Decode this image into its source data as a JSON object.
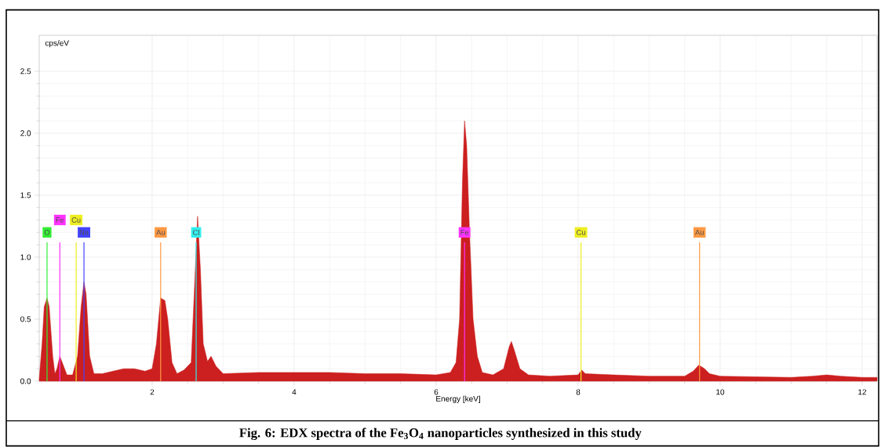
{
  "chart_data": {
    "type": "area",
    "title": "Fig. 6: EDX spectra of the Fe$_{3}$O$_{4}$ nanoparticles synthesized in this study",
    "xlabel": "Energy [keV]",
    "ylabel": "cps/eV",
    "xlim": [
      0.41,
      12.21
    ],
    "ylim": [
      0,
      2.79
    ],
    "xticks": [
      2,
      4,
      6,
      8,
      10,
      12
    ],
    "yticks": [
      {
        "value": 0,
        "label": "0.0"
      },
      0.5,
      {
        "value": 1,
        "label": "1.0"
      },
      1.5,
      {
        "value": 2,
        "label": "2.0"
      },
      2.5
    ],
    "grid": true,
    "series": [
      {
        "color": "#cc1f1f",
        "x": [
          0.41,
          0.45,
          0.48,
          0.52,
          0.55,
          0.6,
          0.63,
          0.66,
          0.7,
          0.74,
          0.8,
          0.88,
          0.95,
          1.0,
          1.04,
          1.07,
          1.12,
          1.18,
          1.3,
          1.45,
          1.6,
          1.75,
          1.9,
          2.0,
          2.06,
          2.12,
          2.18,
          2.22,
          2.28,
          2.35,
          2.45,
          2.55,
          2.6,
          2.64,
          2.68,
          2.72,
          2.78,
          2.83,
          2.9,
          3.0,
          3.5,
          4.0,
          4.5,
          5.0,
          5.5,
          6.0,
          6.2,
          6.28,
          6.33,
          6.37,
          6.4,
          6.43,
          6.47,
          6.52,
          6.58,
          6.65,
          6.8,
          6.95,
          7.03,
          7.06,
          7.1,
          7.18,
          7.3,
          7.6,
          8.0,
          8.05,
          8.1,
          8.5,
          9.0,
          9.5,
          9.62,
          9.7,
          9.78,
          9.85,
          10.0,
          10.5,
          11.0,
          11.3,
          11.5,
          11.7,
          12.0,
          12.21
        ],
        "values": [
          0.02,
          0.3,
          0.6,
          0.67,
          0.6,
          0.2,
          0.06,
          0.1,
          0.2,
          0.14,
          0.05,
          0.05,
          0.2,
          0.6,
          0.8,
          0.7,
          0.2,
          0.06,
          0.06,
          0.08,
          0.1,
          0.1,
          0.08,
          0.1,
          0.3,
          0.67,
          0.65,
          0.5,
          0.15,
          0.06,
          0.09,
          0.15,
          0.8,
          1.33,
          0.9,
          0.3,
          0.16,
          0.2,
          0.12,
          0.06,
          0.07,
          0.07,
          0.07,
          0.06,
          0.06,
          0.05,
          0.07,
          0.15,
          0.5,
          1.6,
          2.1,
          1.9,
          1.2,
          0.5,
          0.2,
          0.07,
          0.05,
          0.1,
          0.28,
          0.32,
          0.25,
          0.1,
          0.05,
          0.04,
          0.05,
          0.09,
          0.06,
          0.05,
          0.04,
          0.04,
          0.08,
          0.13,
          0.1,
          0.06,
          0.04,
          0.035,
          0.03,
          0.04,
          0.05,
          0.04,
          0.03,
          0.03
        ]
      }
    ],
    "ref_lines": [
      {
        "axis": "x",
        "value": 0.52,
        "label": "O",
        "color": "#33ee33"
      },
      {
        "axis": "x",
        "value": 0.7,
        "label": "Fe",
        "color": "#ff33ff"
      },
      {
        "axis": "x",
        "value": 0.93,
        "label": "Cu",
        "color": "#eeee22"
      },
      {
        "axis": "x",
        "value": 1.04,
        "label": "Na",
        "color": "#4444ff"
      },
      {
        "axis": "x",
        "value": 2.12,
        "label": "Au",
        "color": "#ff9944"
      },
      {
        "axis": "x",
        "value": 2.62,
        "label": "Cl",
        "color": "#33eeee"
      },
      {
        "axis": "x",
        "value": 6.4,
        "label": "Fe",
        "color": "#ff33ff"
      },
      {
        "axis": "x",
        "value": 8.04,
        "label": "Cu",
        "color": "#eeee22"
      },
      {
        "axis": "x",
        "value": 9.71,
        "label": "Au",
        "color": "#ff9944"
      }
    ]
  }
}
